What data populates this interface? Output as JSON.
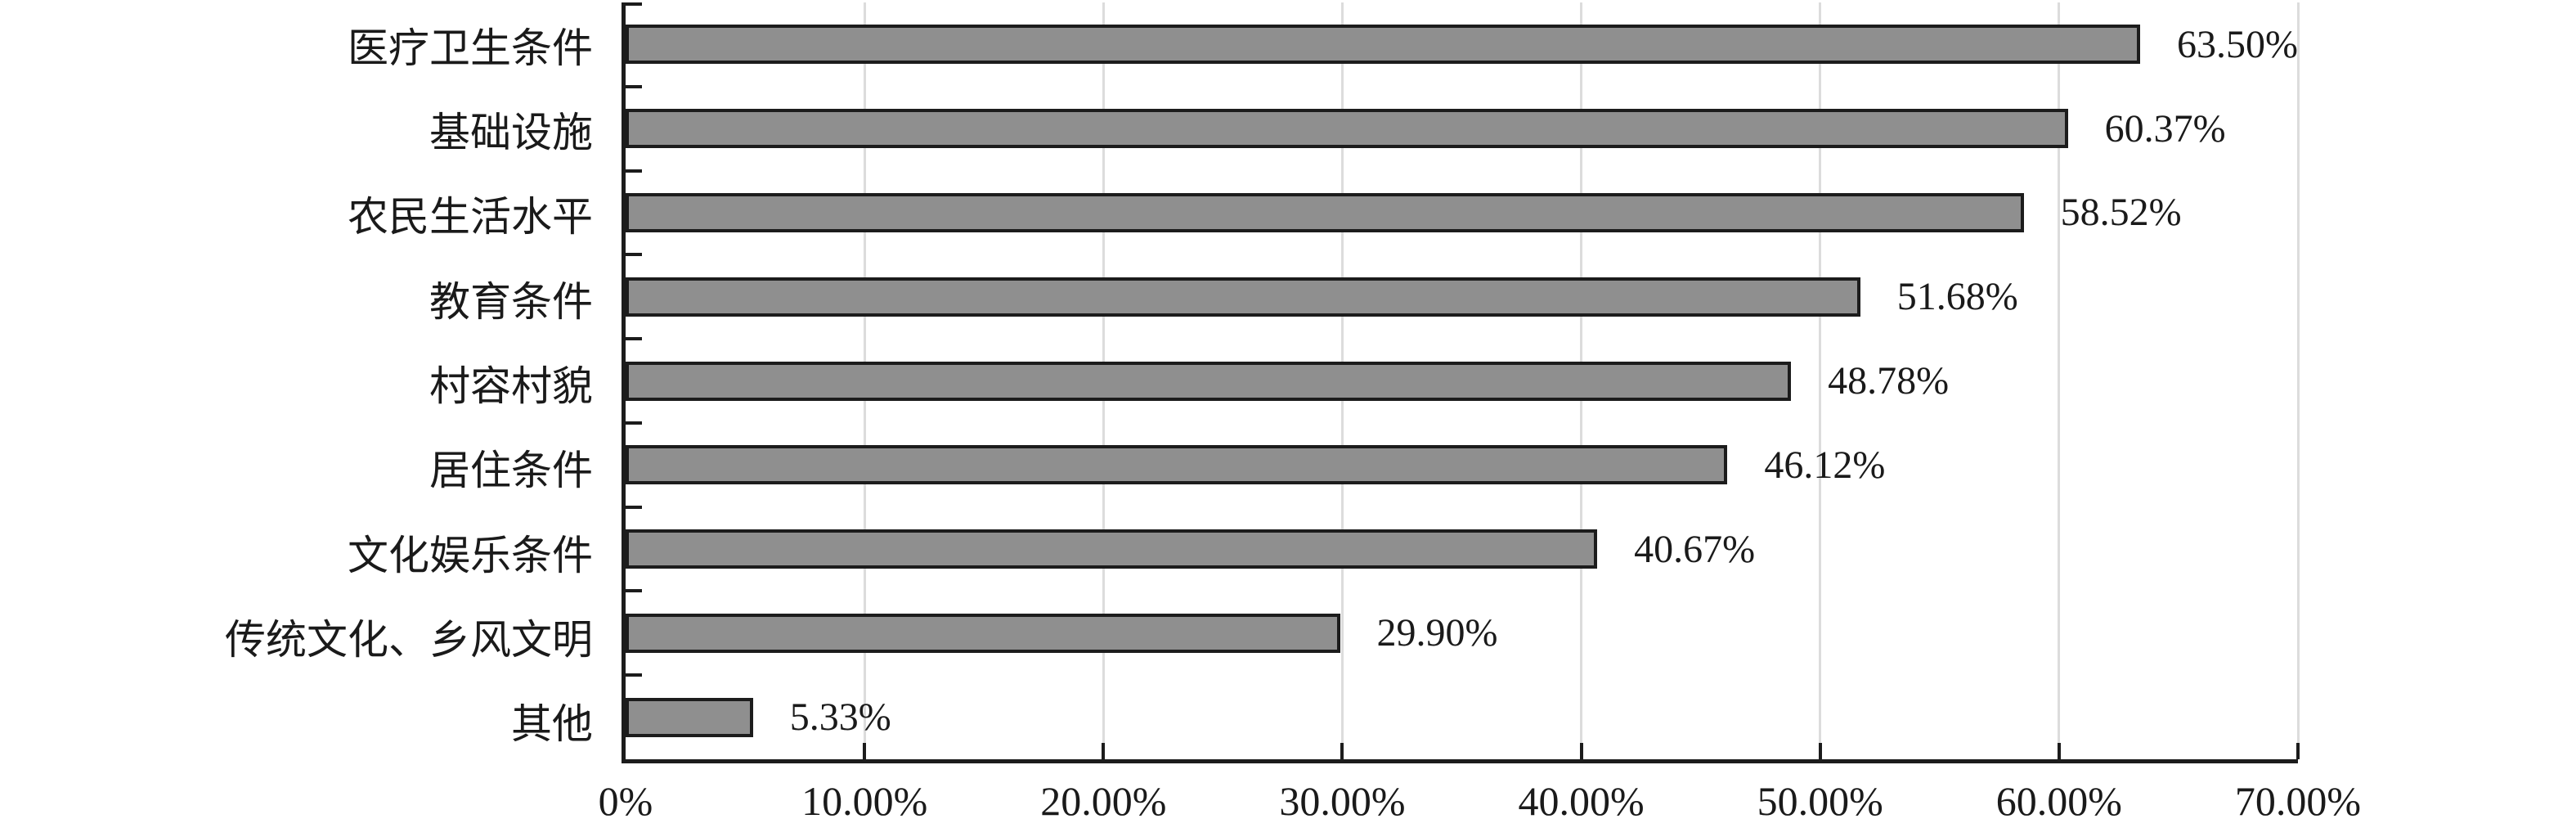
{
  "chart_data": {
    "type": "bar",
    "orientation": "horizontal",
    "title": "",
    "categories": [
      "医疗卫生条件",
      "基础设施",
      "农民生活水平",
      "教育条件",
      "村容村貌",
      "居住条件",
      "文化娱乐条件",
      "传统文化、乡风文明",
      "其他"
    ],
    "values": [
      63.5,
      60.37,
      58.52,
      51.68,
      48.78,
      46.12,
      40.67,
      29.9,
      5.33
    ],
    "value_labels": [
      "63.50%",
      "60.37%",
      "58.52%",
      "51.68%",
      "48.78%",
      "46.12%",
      "40.67%",
      "29.90%",
      "5.33%"
    ],
    "x_tick_labels": [
      "0%",
      "10.00%",
      "20.00%",
      "30.00%",
      "40.00%",
      "50.00%",
      "60.00%",
      "70.00%"
    ],
    "xlim": [
      0,
      70
    ],
    "x_tick_step": 10,
    "grid": "vertical-gridlines-on",
    "legend": "none",
    "tick_style": "inside"
  },
  "colors": {
    "background": "#ffffff",
    "bar_fill": "#8f8f8f",
    "bar_border": "#1c1c1c",
    "axis": "#1c1c1c",
    "gridline": "#dcdcdc",
    "text": "#1a1a1a"
  }
}
